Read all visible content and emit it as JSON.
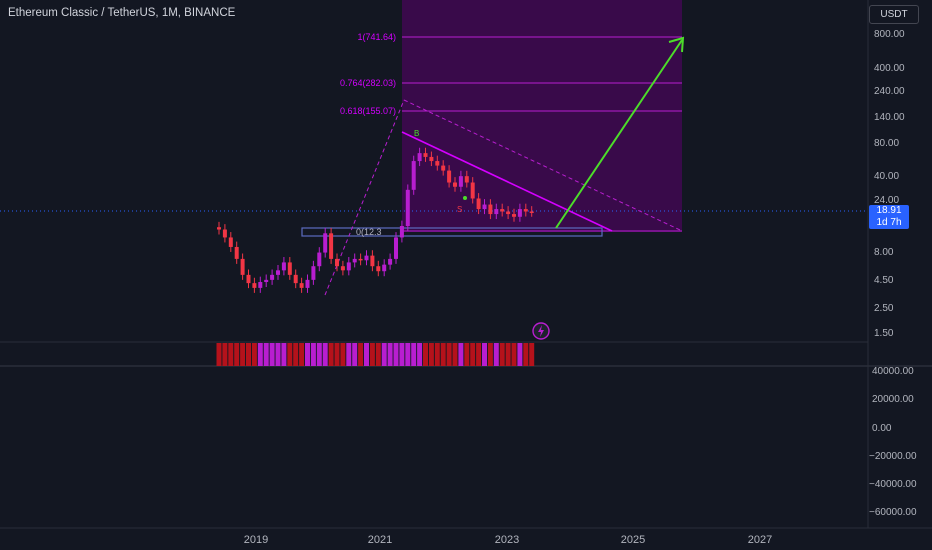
{
  "header": {
    "symbol_title": "Ethereum Classic / TetherUS, 1M, BINANCE",
    "currency": "USDT"
  },
  "price_scale": {
    "labels": [
      "800.00",
      "400.00",
      "240.00",
      "140.00",
      "80.00",
      "40.00",
      "24.00",
      "8.00",
      "4.50",
      "2.50",
      "1.50"
    ]
  },
  "last_price": {
    "price": "18.91",
    "countdown": "1d 7h"
  },
  "volume_scale": {
    "labels": [
      "40000.00",
      "20000.00",
      "0.00",
      "−20000.00",
      "−40000.00",
      "−60000.00"
    ]
  },
  "time_axis": {
    "labels": [
      "2019",
      "2021",
      "2023",
      "2025",
      "2027"
    ]
  },
  "fibonacci": {
    "levels": [
      {
        "label": "1(741.64)"
      },
      {
        "label": "0.764(282.03)"
      },
      {
        "label": "0.618(155.07)"
      },
      {
        "label": "0(12.3"
      }
    ]
  },
  "annotations": {
    "marker_b": "B",
    "marker_s": "S"
  },
  "colors": {
    "background": "#131722",
    "bear": "#f23645",
    "purple": "#b81ed0",
    "magenta": "#d400ff",
    "fib_zone": "#3b0a4d",
    "arrow": "#4cdd2a",
    "price_tag": "#2962ff"
  },
  "chart_data": {
    "type": "candlestick",
    "title": "Ethereum Classic / TetherUS, 1M, BINANCE",
    "y_scale": "log",
    "y_ticks": [
      800,
      400,
      240,
      140,
      80,
      40,
      24,
      8,
      4.5,
      2.5,
      1.5
    ],
    "x_ticks": [
      "2019",
      "2021",
      "2023",
      "2025",
      "2027"
    ],
    "last_price": 18.91,
    "fibonacci_levels": [
      {
        "ratio": 1,
        "price": 741.64
      },
      {
        "ratio": 0.764,
        "price": 282.03
      },
      {
        "ratio": 0.618,
        "price": 155.07
      },
      {
        "ratio": 0,
        "price": 12.3
      }
    ],
    "approx_monthly_closes": [
      13,
      11,
      9,
      7,
      5,
      4.2,
      3.8,
      4.3,
      4.5,
      5,
      5.5,
      6.5,
      5,
      4.2,
      3.8,
      4.5,
      6,
      8,
      12,
      7,
      6,
      5.5,
      6.5,
      7,
      6.8,
      7.5,
      6,
      5.4,
      6.2,
      7,
      11,
      14,
      30,
      55,
      65,
      60,
      55,
      50,
      45,
      35,
      32,
      40,
      35,
      25,
      20,
      22,
      18,
      20,
      19,
      18,
      17,
      20,
      19,
      18.9
    ],
    "volume_scale": [
      40000,
      20000,
      0,
      -20000,
      -40000,
      -60000
    ]
  }
}
